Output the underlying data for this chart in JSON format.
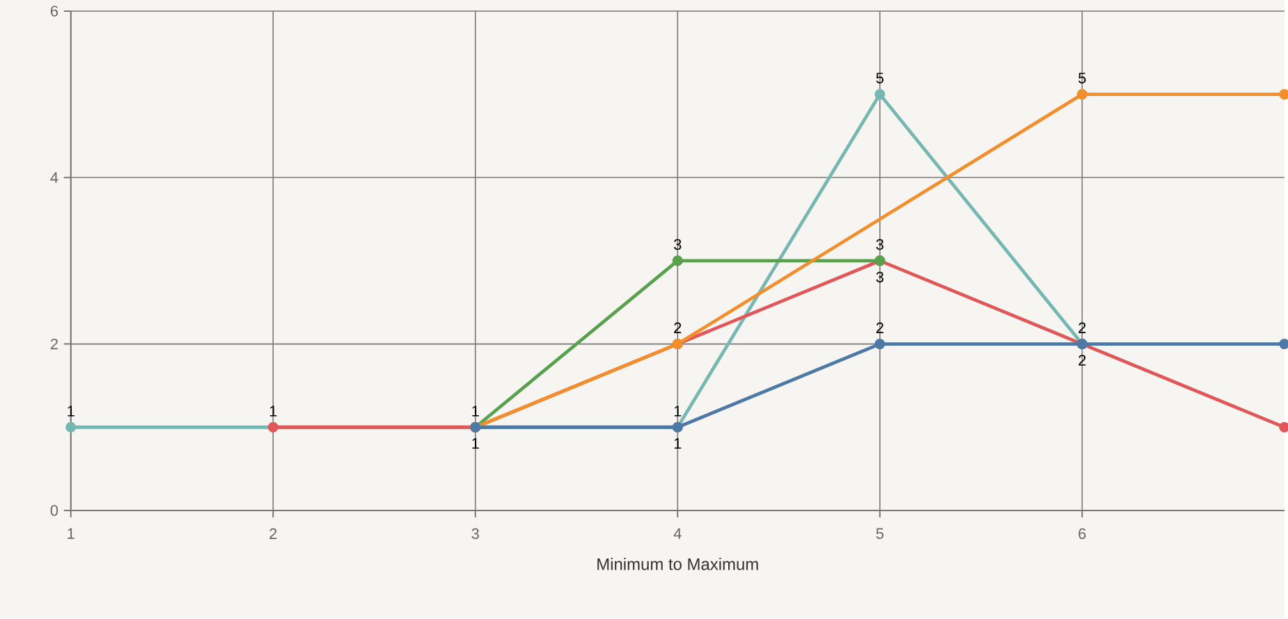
{
  "chart_data": {
    "type": "line",
    "xlabel": "Minimum to Maximum",
    "xlim": [
      1,
      7
    ],
    "xticks": [
      1,
      2,
      3,
      4,
      5,
      6
    ],
    "ylim": [
      0,
      6
    ],
    "yticks": [
      0,
      2,
      4,
      6
    ],
    "grid": true,
    "marker": "circle",
    "line_style": "solid",
    "series": [
      {
        "color": "#76b7b2",
        "x": [
          1,
          4,
          5,
          6
        ],
        "values": [
          1,
          1,
          5,
          2
        ],
        "value_labels": [
          "1",
          "1",
          "5",
          "2"
        ]
      },
      {
        "color": "#e15759",
        "x": [
          2,
          3,
          4,
          5,
          6,
          7
        ],
        "values": [
          1,
          1,
          2,
          3,
          2,
          1
        ],
        "value_labels": [
          "1",
          "1",
          null,
          "3",
          "2",
          null
        ]
      },
      {
        "color": "#59a14f",
        "x": [
          3,
          4,
          5
        ],
        "values": [
          1,
          3,
          3
        ],
        "value_labels": [
          null,
          "3",
          "3"
        ]
      },
      {
        "color": "#f28e2b",
        "x": [
          3,
          4,
          6,
          7
        ],
        "values": [
          1,
          2,
          5,
          5
        ],
        "value_labels": [
          null,
          "2",
          "5",
          null
        ]
      },
      {
        "color": "#4e79a7",
        "x": [
          3,
          4,
          5,
          6,
          7
        ],
        "values": [
          1,
          1,
          2,
          2,
          2
        ],
        "value_labels": [
          "1",
          "1",
          "2",
          null,
          null
        ]
      }
    ]
  }
}
